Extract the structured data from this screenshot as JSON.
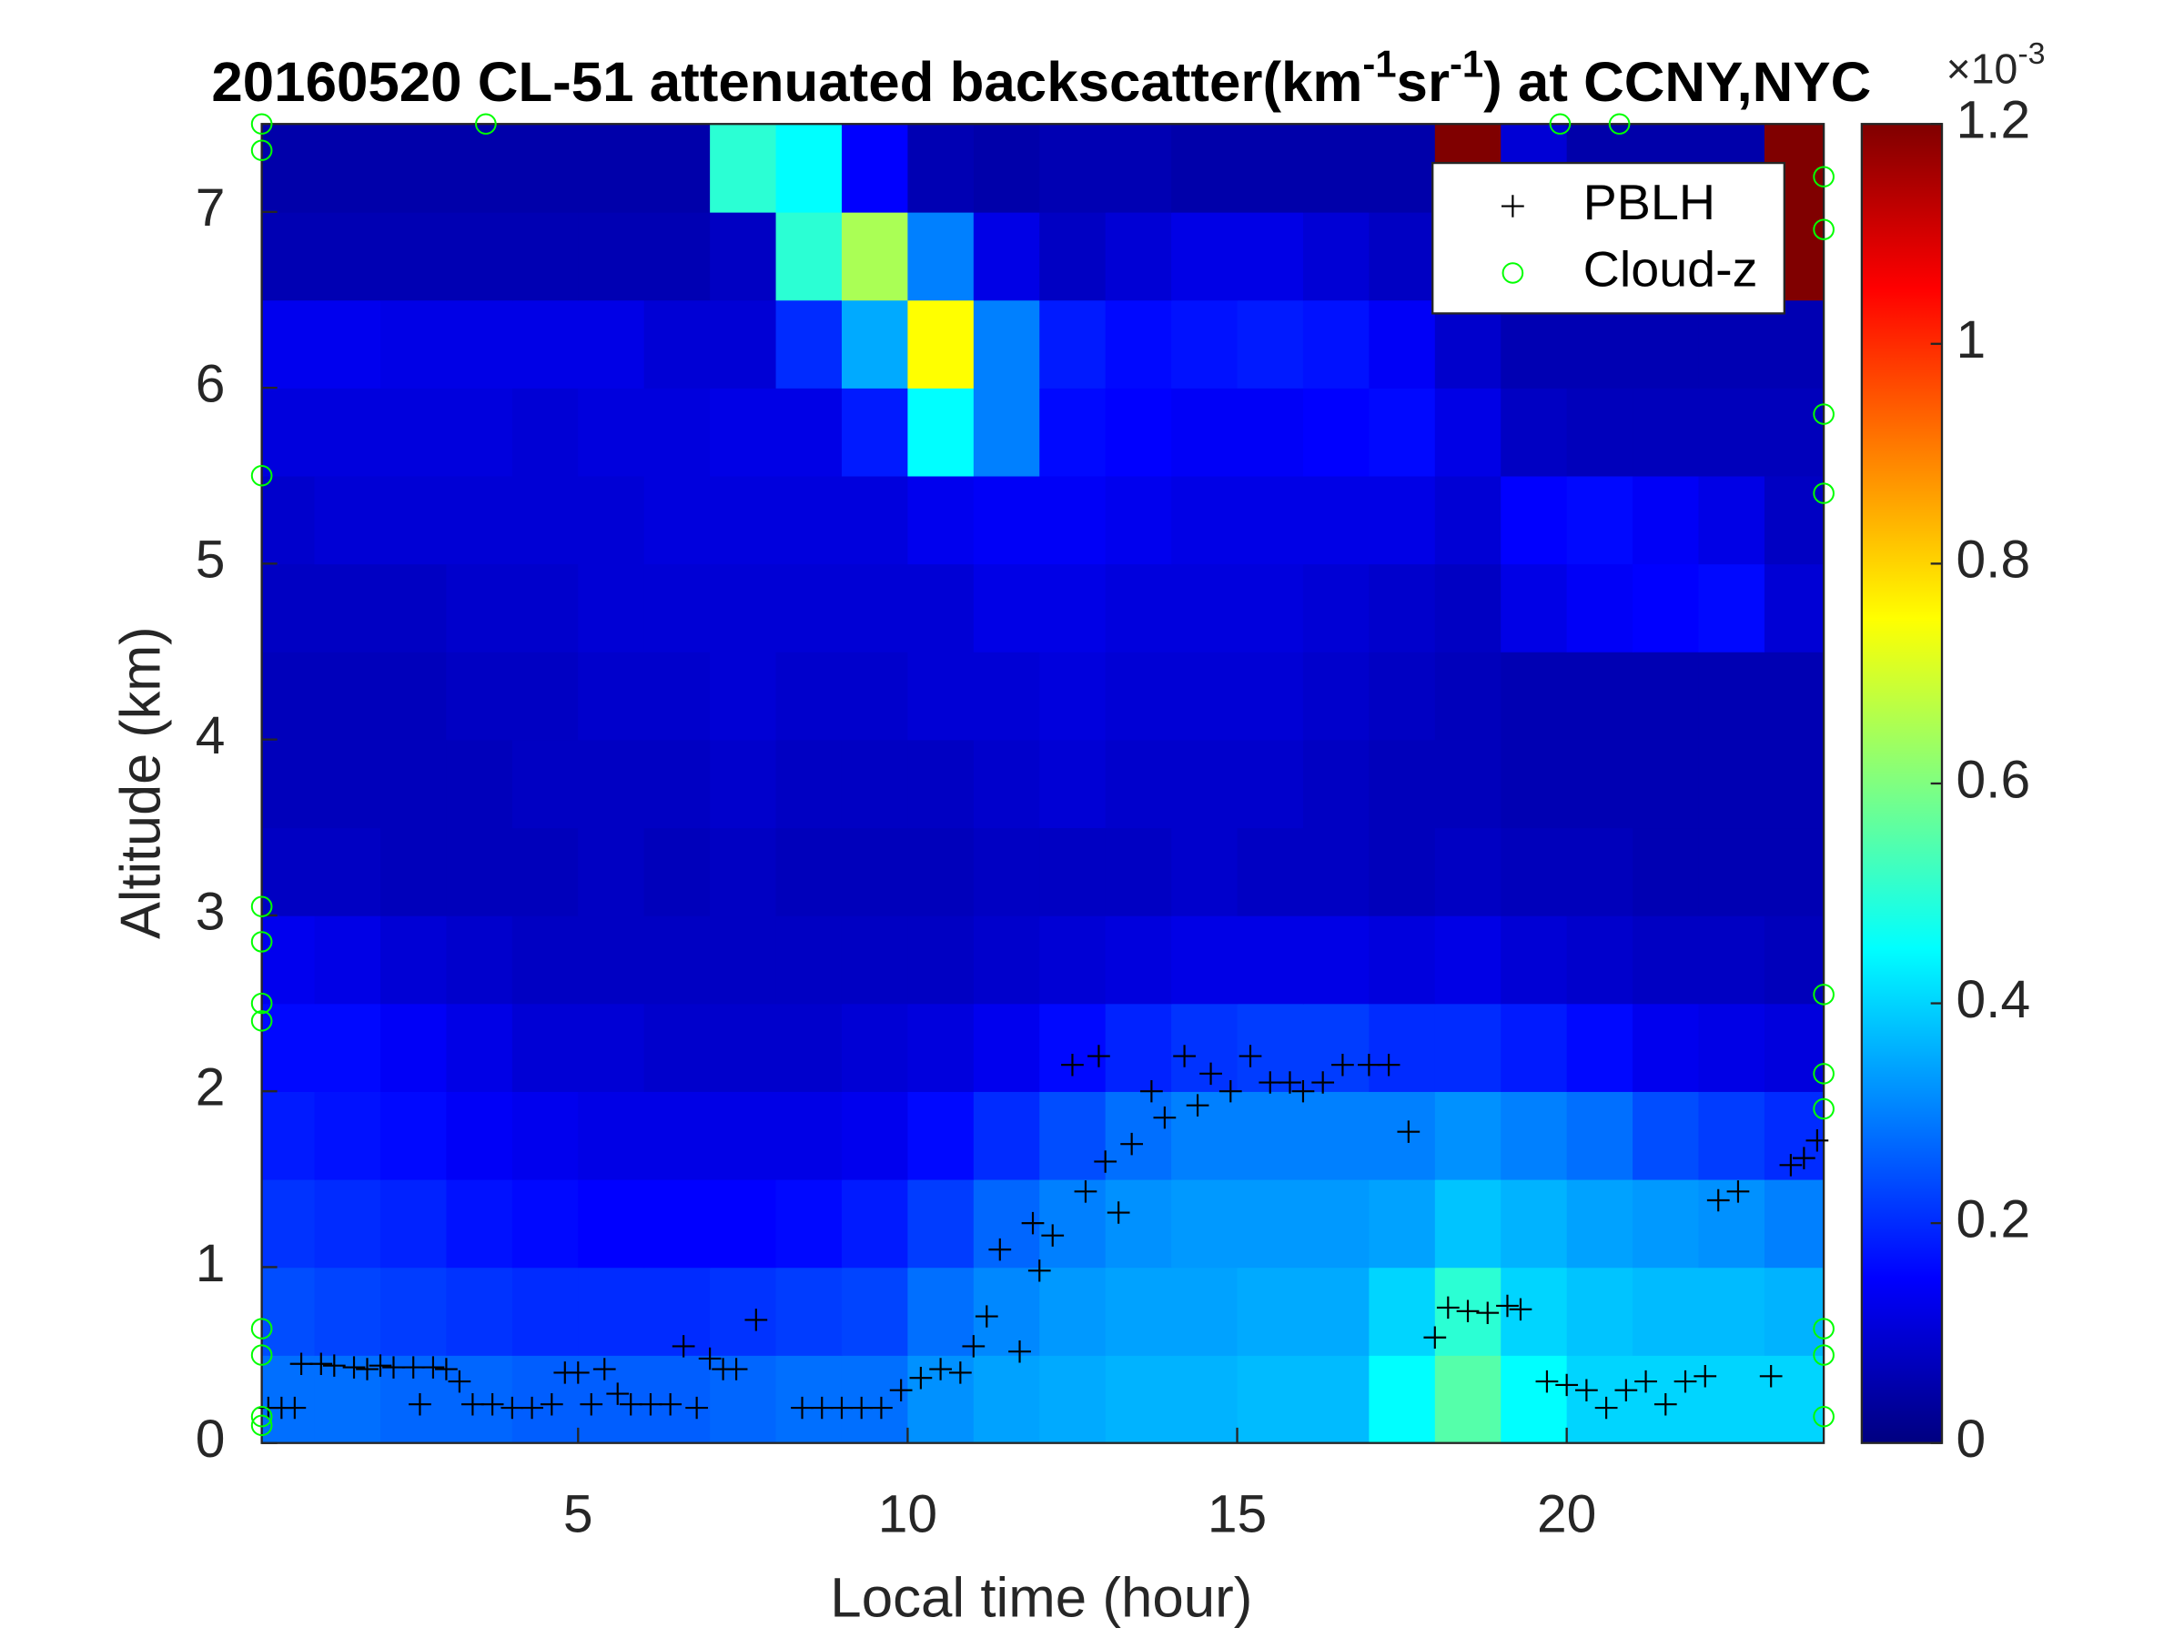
{
  "chart_data": {
    "type": "heatmap",
    "title_parts": [
      "20160520  CL-51 attenuated backscatter(km",
      "-1",
      "sr",
      "-1",
      ") at CCNY,NYC"
    ],
    "xlabel": "Local time (hour)",
    "ylabel": "Altitude (km)",
    "xlim": [
      0.2,
      23.9
    ],
    "xticks": [
      5,
      10,
      15,
      20
    ],
    "ylim": [
      0,
      7.5
    ],
    "yticks": [
      0,
      1,
      2,
      3,
      4,
      5,
      6,
      7
    ],
    "colormap": "jet",
    "clim": [
      0,
      1.2
    ],
    "cticks": [
      0,
      0.2,
      0.4,
      0.6,
      0.8,
      1,
      1.2
    ],
    "colorbar_exponent": "×10",
    "colorbar_exponent_power": "-3",
    "legend": "northeast",
    "x": [
      0.5,
      1.5,
      2.5,
      3.5,
      4.5,
      5.5,
      6.5,
      7.5,
      8.5,
      9.5,
      10.5,
      11.5,
      12.5,
      13.5,
      14.5,
      15.5,
      16.5,
      17.5,
      18.5,
      19.5,
      20.5,
      21.5,
      22.5,
      23.5
    ],
    "y": [
      0.25,
      0.75,
      1.25,
      1.75,
      2.25,
      2.75,
      3.25,
      3.75,
      4.25,
      4.75,
      5.25,
      5.75,
      6.25,
      6.75,
      7.25
    ],
    "z": [
      [
        0.28,
        0.28,
        0.27,
        0.27,
        0.26,
        0.26,
        0.26,
        0.27,
        0.28,
        0.28,
        0.32,
        0.34,
        0.35,
        0.36,
        0.36,
        0.37,
        0.37,
        0.45,
        0.55,
        0.45,
        0.4,
        0.4,
        0.4,
        0.4
      ],
      [
        0.24,
        0.23,
        0.22,
        0.21,
        0.2,
        0.2,
        0.2,
        0.21,
        0.22,
        0.23,
        0.28,
        0.31,
        0.33,
        0.34,
        0.34,
        0.35,
        0.35,
        0.4,
        0.5,
        0.4,
        0.38,
        0.37,
        0.37,
        0.36
      ],
      [
        0.21,
        0.2,
        0.19,
        0.17,
        0.16,
        0.15,
        0.15,
        0.15,
        0.16,
        0.18,
        0.22,
        0.27,
        0.3,
        0.32,
        0.33,
        0.33,
        0.33,
        0.34,
        0.38,
        0.36,
        0.34,
        0.33,
        0.32,
        0.3
      ],
      [
        0.18,
        0.17,
        0.16,
        0.14,
        0.13,
        0.12,
        0.12,
        0.12,
        0.12,
        0.13,
        0.16,
        0.2,
        0.24,
        0.28,
        0.3,
        0.3,
        0.3,
        0.3,
        0.32,
        0.3,
        0.28,
        0.24,
        0.22,
        0.2
      ],
      [
        0.16,
        0.16,
        0.14,
        0.12,
        0.1,
        0.1,
        0.09,
        0.09,
        0.09,
        0.1,
        0.11,
        0.13,
        0.16,
        0.19,
        0.21,
        0.22,
        0.22,
        0.2,
        0.2,
        0.18,
        0.16,
        0.13,
        0.12,
        0.11
      ],
      [
        0.13,
        0.12,
        0.1,
        0.09,
        0.08,
        0.08,
        0.08,
        0.08,
        0.08,
        0.08,
        0.08,
        0.09,
        0.1,
        0.11,
        0.12,
        0.12,
        0.12,
        0.11,
        0.12,
        0.1,
        0.09,
        0.08,
        0.08,
        0.07
      ],
      [
        0.08,
        0.08,
        0.07,
        0.07,
        0.07,
        0.08,
        0.07,
        0.08,
        0.07,
        0.07,
        0.07,
        0.08,
        0.08,
        0.08,
        0.09,
        0.08,
        0.08,
        0.07,
        0.08,
        0.07,
        0.07,
        0.06,
        0.06,
        0.06
      ],
      [
        0.07,
        0.07,
        0.07,
        0.07,
        0.08,
        0.08,
        0.08,
        0.09,
        0.08,
        0.08,
        0.08,
        0.09,
        0.1,
        0.09,
        0.09,
        0.09,
        0.08,
        0.07,
        0.07,
        0.06,
        0.06,
        0.06,
        0.06,
        0.06
      ],
      [
        0.07,
        0.07,
        0.07,
        0.08,
        0.08,
        0.09,
        0.09,
        0.1,
        0.09,
        0.09,
        0.1,
        0.1,
        0.11,
        0.1,
        0.1,
        0.1,
        0.09,
        0.08,
        0.07,
        0.06,
        0.06,
        0.06,
        0.06,
        0.06
      ],
      [
        0.08,
        0.08,
        0.08,
        0.09,
        0.09,
        0.1,
        0.1,
        0.1,
        0.1,
        0.1,
        0.1,
        0.12,
        0.12,
        0.11,
        0.11,
        0.11,
        0.1,
        0.09,
        0.08,
        0.12,
        0.14,
        0.15,
        0.16,
        0.1
      ],
      [
        0.09,
        0.1,
        0.1,
        0.1,
        0.1,
        0.1,
        0.11,
        0.11,
        0.11,
        0.11,
        0.13,
        0.14,
        0.14,
        0.13,
        0.12,
        0.12,
        0.12,
        0.12,
        0.1,
        0.15,
        0.16,
        0.14,
        0.12,
        0.08
      ],
      [
        0.11,
        0.11,
        0.11,
        0.11,
        0.1,
        0.11,
        0.11,
        0.12,
        0.12,
        0.18,
        0.45,
        0.3,
        0.16,
        0.15,
        0.14,
        0.14,
        0.15,
        0.16,
        0.12,
        0.08,
        0.07,
        0.07,
        0.07,
        0.07
      ],
      [
        0.13,
        0.13,
        0.12,
        0.12,
        0.12,
        0.12,
        0.1,
        0.1,
        0.2,
        0.35,
        0.75,
        0.3,
        0.18,
        0.16,
        0.17,
        0.18,
        0.17,
        0.14,
        0.09,
        0.06,
        0.06,
        0.06,
        0.06,
        0.06
      ],
      [
        0.06,
        0.06,
        0.06,
        0.06,
        0.06,
        0.06,
        0.06,
        0.08,
        0.5,
        0.65,
        0.3,
        0.12,
        0.08,
        0.1,
        0.12,
        0.12,
        0.1,
        0.08,
        0.06,
        0.06,
        0.06,
        0.06,
        0.06,
        1.2
      ],
      [
        0.05,
        0.05,
        0.05,
        0.05,
        0.05,
        0.05,
        0.05,
        0.5,
        0.45,
        0.15,
        0.06,
        0.05,
        0.06,
        0.06,
        0.05,
        0.05,
        0.05,
        0.05,
        1.2,
        0.1,
        0.05,
        0.05,
        0.05,
        1.2
      ]
    ],
    "series": [
      {
        "name": "PBLH",
        "color": "#000000",
        "marker": "+",
        "x": [
          0.3,
          0.5,
          0.7,
          0.8,
          1.1,
          1.3,
          1.6,
          1.8,
          2.0,
          2.2,
          2.5,
          2.8,
          3.0,
          2.6,
          3.2,
          3.4,
          3.7,
          4.0,
          4.3,
          4.6,
          4.8,
          5.0,
          5.2,
          5.4,
          5.6,
          5.8,
          6.1,
          6.4,
          6.6,
          6.8,
          7.0,
          7.2,
          7.4,
          7.7,
          8.4,
          8.7,
          9.0,
          9.3,
          9.6,
          9.9,
          10.2,
          10.5,
          10.8,
          11.0,
          11.2,
          11.4,
          11.7,
          11.9,
          12.0,
          12.2,
          12.5,
          12.7,
          12.9,
          13.0,
          13.2,
          13.4,
          13.7,
          13.9,
          14.2,
          14.4,
          14.6,
          14.9,
          15.2,
          15.5,
          15.8,
          16.0,
          16.3,
          16.6,
          17.0,
          17.3,
          17.6,
          18.0,
          18.2,
          18.5,
          18.8,
          19.1,
          19.3,
          19.7,
          20.0,
          20.3,
          20.6,
          20.9,
          21.2,
          21.5,
          21.8,
          22.1,
          22.3,
          22.6,
          23.1,
          23.4,
          23.6,
          23.8
        ],
        "values": [
          0.2,
          0.2,
          0.2,
          0.45,
          0.45,
          0.44,
          0.43,
          0.42,
          0.44,
          0.43,
          0.43,
          0.43,
          0.42,
          0.22,
          0.35,
          0.22,
          0.22,
          0.2,
          0.2,
          0.22,
          0.4,
          0.4,
          0.22,
          0.42,
          0.28,
          0.22,
          0.22,
          0.22,
          0.55,
          0.2,
          0.48,
          0.42,
          0.42,
          0.7,
          0.2,
          0.2,
          0.2,
          0.2,
          0.2,
          0.3,
          0.37,
          0.42,
          0.4,
          0.55,
          0.72,
          1.1,
          0.52,
          1.25,
          0.98,
          1.18,
          2.15,
          1.43,
          2.2,
          1.6,
          1.31,
          1.7,
          2.0,
          1.85,
          2.2,
          1.92,
          2.1,
          2.0,
          2.2,
          2.05,
          2.05,
          2.0,
          2.05,
          2.15,
          2.15,
          2.15,
          1.77,
          0.6,
          0.77,
          0.75,
          0.74,
          0.78,
          0.76,
          0.35,
          0.33,
          0.3,
          0.2,
          0.3,
          0.35,
          0.22,
          0.35,
          0.38,
          1.38,
          1.43,
          0.38,
          1.58,
          1.62,
          1.72
        ]
      },
      {
        "name": "Cloud-z",
        "color": "#00ff00",
        "marker": "o",
        "x": [
          0.2,
          0.2,
          0.2,
          0.2,
          0.2,
          0.2,
          0.2,
          0.2,
          0.2,
          0.2,
          0.2,
          3.6,
          19.9,
          20.8,
          23.9,
          23.9,
          23.9,
          23.9,
          23.9,
          23.9,
          23.9,
          23.9,
          23.9,
          23.9
        ],
        "values": [
          7.5,
          7.35,
          5.5,
          3.05,
          2.85,
          2.5,
          2.4,
          0.65,
          0.5,
          0.15,
          0.1,
          7.5,
          7.5,
          7.5,
          7.2,
          6.9,
          5.85,
          5.4,
          2.55,
          2.1,
          1.9,
          0.65,
          0.5,
          0.15
        ]
      }
    ]
  }
}
